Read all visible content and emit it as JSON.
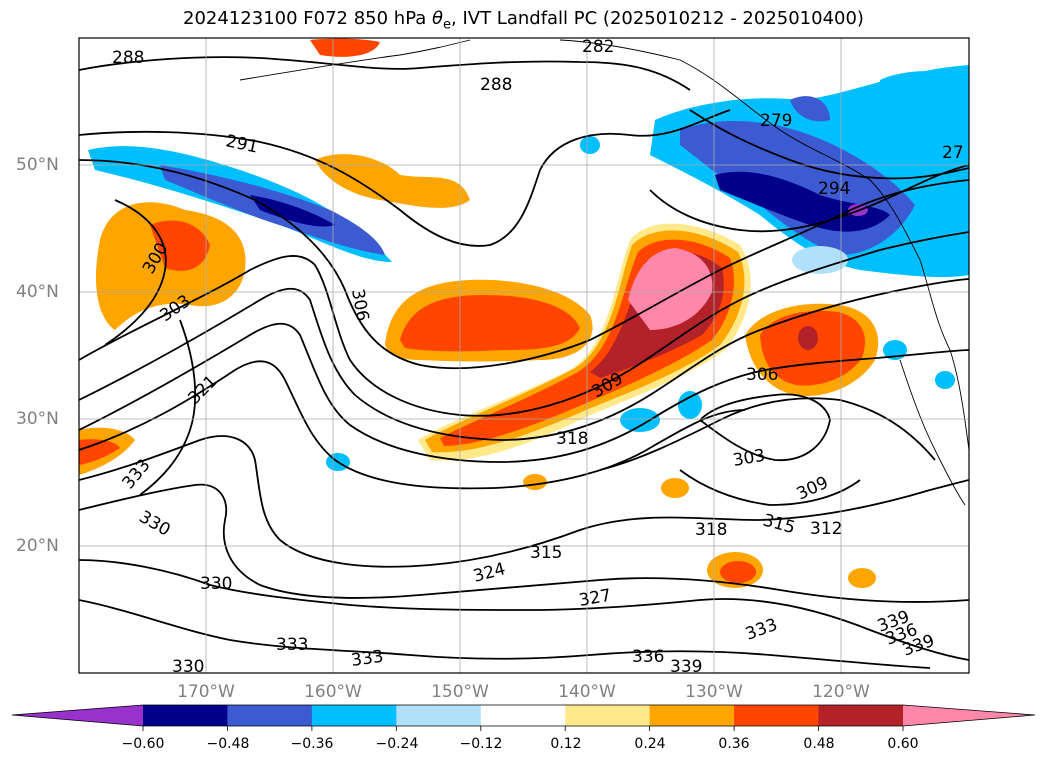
{
  "title": {
    "prefix": "2024123100 F072 850 hPa ",
    "theta": "θ",
    "theta_sub": "e",
    "suffix": ", IVT Landfall PC (2025010212 - 2025010400)"
  },
  "map": {
    "projection": "plate carree",
    "lon_range": [
      "180°W",
      "110°W"
    ],
    "lat_range": [
      "10°N",
      "60°N"
    ],
    "gridlines": true,
    "lon_labels": [
      "170°W",
      "160°W",
      "150°W",
      "140°W",
      "130°W",
      "120°W"
    ],
    "lat_labels": [
      "50°N",
      "40°N",
      "30°N",
      "20°N"
    ]
  },
  "contours": {
    "variable": "850 hPa theta-e",
    "color": "#000000",
    "labels": [
      "288",
      "288",
      "282",
      "291",
      "279",
      "27",
      "294",
      "300",
      "303",
      "306",
      "309",
      "306",
      "318",
      "303",
      "309",
      "315",
      "312",
      "318",
      "315",
      "324",
      "327",
      "321",
      "333",
      "330",
      "330",
      "333",
      "330",
      "333",
      "336",
      "339",
      "339",
      "336",
      "339",
      "333"
    ]
  },
  "colorbar": {
    "tick_labels": [
      "−0.60",
      "−0.48",
      "−0.36",
      "−0.24",
      "−0.12",
      "0.12",
      "0.24",
      "0.36",
      "0.48",
      "0.60"
    ],
    "colors": [
      "#9932cc",
      "#00008b",
      "#3c5ad2",
      "#00bfff",
      "#b0e0fa",
      "#ffffff",
      "#ffe98a",
      "#ffa500",
      "#ff4500",
      "#b22228",
      "#ff88aa"
    ],
    "extend": "both"
  }
}
